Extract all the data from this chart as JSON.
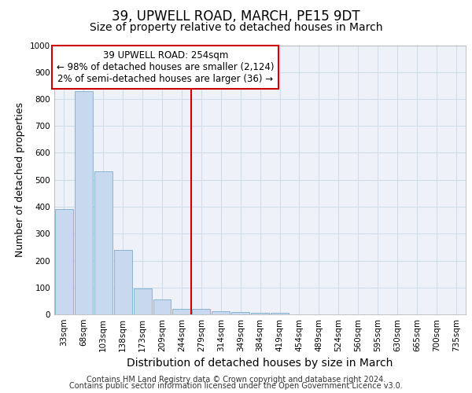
{
  "title1": "39, UPWELL ROAD, MARCH, PE15 9DT",
  "title2": "Size of property relative to detached houses in March",
  "xlabel": "Distribution of detached houses by size in March",
  "ylabel": "Number of detached properties",
  "bin_labels": [
    "33sqm",
    "68sqm",
    "103sqm",
    "138sqm",
    "173sqm",
    "209sqm",
    "244sqm",
    "279sqm",
    "314sqm",
    "349sqm",
    "384sqm",
    "419sqm",
    "454sqm",
    "489sqm",
    "524sqm",
    "560sqm",
    "595sqm",
    "630sqm",
    "665sqm",
    "700sqm",
    "735sqm"
  ],
  "bar_values": [
    390,
    830,
    530,
    240,
    95,
    55,
    20,
    20,
    13,
    10,
    5,
    5,
    0,
    0,
    0,
    0,
    0,
    0,
    0,
    0,
    0
  ],
  "bar_color": "#c8d8ee",
  "bar_edge_color": "#7aaccc",
  "grid_color": "#d0dce8",
  "background_color": "#ffffff",
  "plot_bg_color": "#eef2f8",
  "redline_x": 6.5,
  "redline_color": "#cc0000",
  "annotation_line1": "39 UPWELL ROAD: 254sqm",
  "annotation_line2": "← 98% of detached houses are smaller (2,124)",
  "annotation_line3": "2% of semi-detached houses are larger (36) →",
  "annotation_box_color": "#ffffff",
  "annotation_box_edge": "#cc0000",
  "ylim": [
    0,
    1000
  ],
  "yticks": [
    0,
    100,
    200,
    300,
    400,
    500,
    600,
    700,
    800,
    900,
    1000
  ],
  "footer1": "Contains HM Land Registry data © Crown copyright and database right 2024.",
  "footer2": "Contains public sector information licensed under the Open Government Licence v3.0.",
  "title1_fontsize": 12,
  "title2_fontsize": 10,
  "xlabel_fontsize": 10,
  "ylabel_fontsize": 9,
  "tick_fontsize": 7.5,
  "annotation_fontsize": 8.5,
  "footer_fontsize": 7
}
